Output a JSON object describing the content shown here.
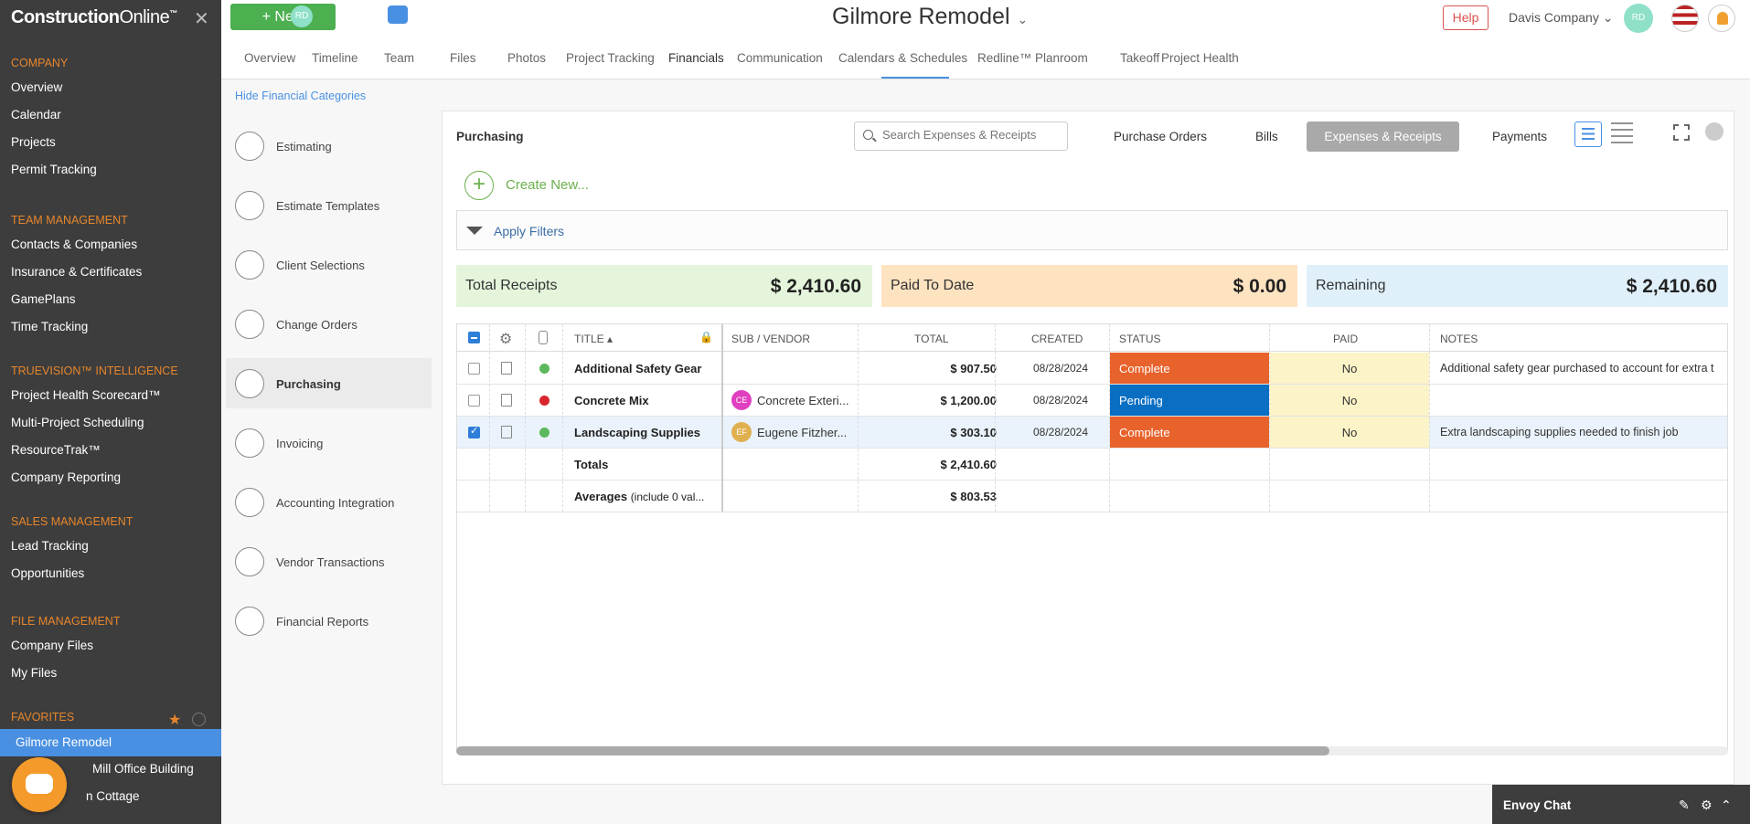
{
  "brand": {
    "name_bold": "Construction",
    "name_light": "Online",
    "tm": "™"
  },
  "sidebar": {
    "sections": [
      {
        "title": "COMPANY",
        "items": [
          "Overview",
          "Calendar",
          "Projects",
          "Permit Tracking"
        ]
      },
      {
        "title": "TEAM MANAGEMENT",
        "items": [
          "Contacts & Companies",
          "Insurance & Certificates",
          "GamePlans",
          "Time Tracking"
        ]
      },
      {
        "title": "TRUEVISION™ INTELLIGENCE",
        "items": [
          "Project Health Scorecard™",
          "Multi-Project Scheduling",
          "ResourceTrak™",
          "Company Reporting"
        ]
      },
      {
        "title": "SALES MANAGEMENT",
        "items": [
          "Lead Tracking",
          "Opportunities"
        ]
      },
      {
        "title": "FILE MANAGEMENT",
        "items": [
          "Company Files",
          "My Files"
        ]
      },
      {
        "title": "FAVORITES",
        "items": [
          "Gilmore Remodel",
          "Mill Office Building",
          "n Cottage"
        ]
      }
    ]
  },
  "header": {
    "new_label": "New",
    "avatar_initials": "RD",
    "project_title": "Gilmore Remodel",
    "help_label": "Help",
    "company": "Davis Company",
    "tabs": [
      "Overview",
      "Timeline",
      "Team",
      "Files",
      "Photos",
      "Project Tracking",
      "Financials",
      "Communication",
      "Calendars & Schedules",
      "Redline™ Planroom",
      "Takeoff",
      "Project Health"
    ],
    "active_tab": "Financials"
  },
  "categories": {
    "hide_label": "Hide Financial Categories",
    "items": [
      "Estimating",
      "Estimate Templates",
      "Client Selections",
      "Change Orders",
      "Purchasing",
      "Invoicing",
      "Accounting Integration",
      "Vendor Transactions",
      "Financial Reports"
    ],
    "active": "Purchasing"
  },
  "panel": {
    "title": "Purchasing",
    "search_placeholder": "Search Expenses & Receipts",
    "tabs": [
      "Purchase Orders",
      "Bills",
      "Expenses & Receipts",
      "Payments"
    ],
    "active_tab": "Expenses & Receipts",
    "create_new": "Create New...",
    "apply_filters": "Apply Filters"
  },
  "summary": {
    "total_receipts": {
      "label": "Total Receipts",
      "value": "$ 2,410.60",
      "color": "#e4f5dc"
    },
    "paid_to_date": {
      "label": "Paid To Date",
      "value": "$ 0.00",
      "color": "#fde3c0"
    },
    "remaining": {
      "label": "Remaining",
      "value": "$ 2,410.60",
      "color": "#e0f0fa"
    }
  },
  "table": {
    "columns": [
      "TITLE",
      "SUB / VENDOR",
      "TOTAL",
      "CREATED",
      "STATUS",
      "PAID",
      "NOTES"
    ],
    "rows": [
      {
        "title": "Additional Safety Gear",
        "vendor": "",
        "vendor_initials": "",
        "vendor_color": "",
        "total": "$ 907.50",
        "created": "08/28/2024",
        "status": "Complete",
        "status_color": "#e8622c",
        "paid": "No",
        "notes": "Additional safety gear purchased to account for extra t",
        "dot": "#5cb85c",
        "checked": false
      },
      {
        "title": "Concrete Mix",
        "vendor": "Concrete Exteri...",
        "vendor_initials": "CE",
        "vendor_color": "#e040c0",
        "total": "$ 1,200.00",
        "created": "08/28/2024",
        "status": "Pending",
        "status_color": "#0a6fc2",
        "paid": "No",
        "notes": "",
        "dot": "#d9262c",
        "checked": false
      },
      {
        "title": "Landscaping Supplies",
        "vendor": "Eugene Fitzher...",
        "vendor_initials": "EF",
        "vendor_color": "#e0b050",
        "total": "$ 303.10",
        "created": "08/28/2024",
        "status": "Complete",
        "status_color": "#e8622c",
        "paid": "No",
        "notes": "Extra landscaping supplies needed to finish job",
        "dot": "#5cb85c",
        "checked": true
      }
    ],
    "totals_label": "Totals",
    "totals_value": "$ 2,410.60",
    "averages_label": "Averages",
    "averages_note": "(include 0 val...",
    "averages_value": "$ 803.53"
  },
  "envoy": {
    "label": "Envoy Chat"
  }
}
